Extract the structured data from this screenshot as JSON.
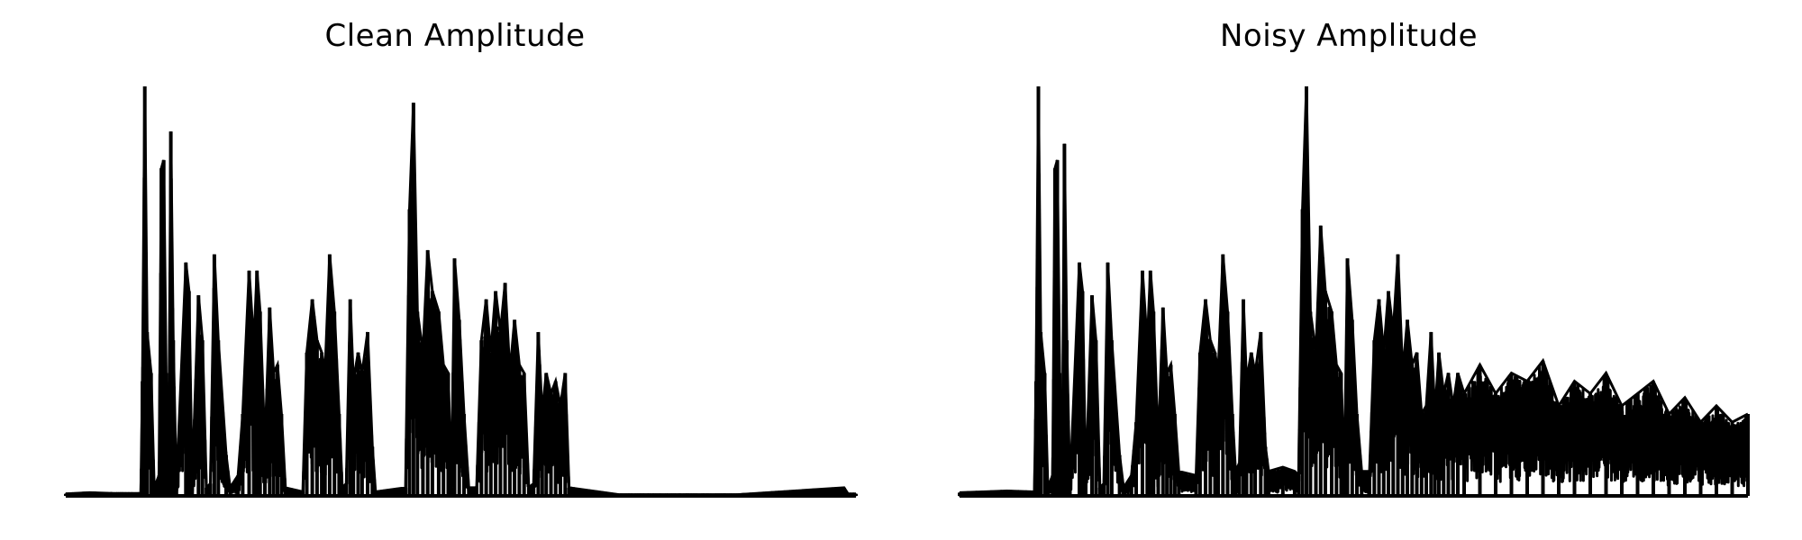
{
  "chart_data": [
    {
      "type": "line",
      "title": "Clean Amplitude",
      "xlabel": "",
      "ylabel": "",
      "axes_visible": false,
      "grid": false,
      "color": "#000000",
      "ylim": [
        0,
        1
      ],
      "segments": [
        {
          "x": [
            0.098,
            0.1
          ],
          "y": [
            0.0,
            1.0
          ]
        }
      ],
      "envelope": [
        [
          0.0,
          0.005
        ],
        [
          0.03,
          0.008
        ],
        [
          0.06,
          0.006
        ],
        [
          0.095,
          0.006
        ],
        [
          0.097,
          0.28
        ],
        [
          0.1,
          1.0
        ],
        [
          0.103,
          0.4
        ],
        [
          0.108,
          0.3
        ],
        [
          0.112,
          0.02
        ],
        [
          0.118,
          0.05
        ],
        [
          0.121,
          0.8
        ],
        [
          0.124,
          0.82
        ],
        [
          0.127,
          0.3
        ],
        [
          0.13,
          0.03
        ],
        [
          0.133,
          0.89
        ],
        [
          0.136,
          0.38
        ],
        [
          0.14,
          0.02
        ],
        [
          0.152,
          0.57
        ],
        [
          0.156,
          0.5
        ],
        [
          0.16,
          0.03
        ],
        [
          0.168,
          0.49
        ],
        [
          0.173,
          0.38
        ],
        [
          0.178,
          0.02
        ],
        [
          0.183,
          0.03
        ],
        [
          0.188,
          0.59
        ],
        [
          0.193,
          0.38
        ],
        [
          0.203,
          0.1
        ],
        [
          0.208,
          0.02
        ],
        [
          0.218,
          0.05
        ],
        [
          0.224,
          0.2
        ],
        [
          0.232,
          0.55
        ],
        [
          0.238,
          0.37
        ],
        [
          0.242,
          0.55
        ],
        [
          0.246,
          0.45
        ],
        [
          0.252,
          0.12
        ],
        [
          0.258,
          0.46
        ],
        [
          0.263,
          0.3
        ],
        [
          0.268,
          0.32
        ],
        [
          0.273,
          0.2
        ],
        [
          0.278,
          0.02
        ],
        [
          0.3,
          0.01
        ],
        [
          0.305,
          0.35
        ],
        [
          0.312,
          0.48
        ],
        [
          0.318,
          0.38
        ],
        [
          0.324,
          0.35
        ],
        [
          0.328,
          0.3
        ],
        [
          0.334,
          0.59
        ],
        [
          0.34,
          0.45
        ],
        [
          0.346,
          0.2
        ],
        [
          0.35,
          0.02
        ],
        [
          0.355,
          0.03
        ],
        [
          0.36,
          0.48
        ],
        [
          0.364,
          0.28
        ],
        [
          0.37,
          0.35
        ],
        [
          0.375,
          0.3
        ],
        [
          0.382,
          0.4
        ],
        [
          0.388,
          0.12
        ],
        [
          0.392,
          0.01
        ],
        [
          0.43,
          0.02
        ],
        [
          0.435,
          0.7
        ],
        [
          0.44,
          0.96
        ],
        [
          0.445,
          0.45
        ],
        [
          0.452,
          0.35
        ],
        [
          0.458,
          0.6
        ],
        [
          0.464,
          0.5
        ],
        [
          0.472,
          0.45
        ],
        [
          0.478,
          0.32
        ],
        [
          0.484,
          0.3
        ],
        [
          0.488,
          0.02
        ],
        [
          0.492,
          0.58
        ],
        [
          0.498,
          0.43
        ],
        [
          0.504,
          0.2
        ],
        [
          0.51,
          0.02
        ],
        [
          0.52,
          0.02
        ],
        [
          0.526,
          0.38
        ],
        [
          0.532,
          0.48
        ],
        [
          0.538,
          0.35
        ],
        [
          0.544,
          0.5
        ],
        [
          0.55,
          0.4
        ],
        [
          0.556,
          0.52
        ],
        [
          0.562,
          0.3
        ],
        [
          0.568,
          0.43
        ],
        [
          0.574,
          0.32
        ],
        [
          0.58,
          0.3
        ],
        [
          0.586,
          0.02
        ],
        [
          0.592,
          0.03
        ],
        [
          0.598,
          0.4
        ],
        [
          0.603,
          0.2
        ],
        [
          0.608,
          0.3
        ],
        [
          0.614,
          0.25
        ],
        [
          0.62,
          0.28
        ],
        [
          0.626,
          0.22
        ],
        [
          0.632,
          0.3
        ],
        [
          0.637,
          0.02
        ],
        [
          0.7,
          0.003
        ],
        [
          0.85,
          0.003
        ],
        [
          0.985,
          0.02
        ],
        [
          0.99,
          0.005
        ],
        [
          1.0,
          0.005
        ]
      ]
    },
    {
      "type": "line",
      "title": "Noisy Amplitude",
      "xlabel": "",
      "ylabel": "",
      "axes_visible": false,
      "grid": false,
      "color": "#000000",
      "ylim": [
        0,
        1
      ],
      "envelope": [
        [
          0.0,
          0.008
        ],
        [
          0.03,
          0.01
        ],
        [
          0.06,
          0.012
        ],
        [
          0.095,
          0.01
        ],
        [
          0.097,
          0.28
        ],
        [
          0.1,
          1.0
        ],
        [
          0.103,
          0.4
        ],
        [
          0.108,
          0.3
        ],
        [
          0.112,
          0.02
        ],
        [
          0.118,
          0.05
        ],
        [
          0.121,
          0.8
        ],
        [
          0.124,
          0.82
        ],
        [
          0.127,
          0.3
        ],
        [
          0.13,
          0.03
        ],
        [
          0.133,
          0.86
        ],
        [
          0.136,
          0.38
        ],
        [
          0.14,
          0.02
        ],
        [
          0.152,
          0.57
        ],
        [
          0.156,
          0.5
        ],
        [
          0.16,
          0.03
        ],
        [
          0.168,
          0.49
        ],
        [
          0.173,
          0.38
        ],
        [
          0.178,
          0.02
        ],
        [
          0.183,
          0.03
        ],
        [
          0.188,
          0.57
        ],
        [
          0.193,
          0.38
        ],
        [
          0.203,
          0.1
        ],
        [
          0.208,
          0.02
        ],
        [
          0.218,
          0.05
        ],
        [
          0.224,
          0.18
        ],
        [
          0.232,
          0.55
        ],
        [
          0.238,
          0.37
        ],
        [
          0.242,
          0.55
        ],
        [
          0.246,
          0.45
        ],
        [
          0.252,
          0.12
        ],
        [
          0.258,
          0.46
        ],
        [
          0.263,
          0.3
        ],
        [
          0.268,
          0.32
        ],
        [
          0.273,
          0.2
        ],
        [
          0.278,
          0.06
        ],
        [
          0.3,
          0.05
        ],
        [
          0.305,
          0.35
        ],
        [
          0.312,
          0.48
        ],
        [
          0.318,
          0.38
        ],
        [
          0.324,
          0.35
        ],
        [
          0.328,
          0.3
        ],
        [
          0.334,
          0.59
        ],
        [
          0.34,
          0.45
        ],
        [
          0.346,
          0.2
        ],
        [
          0.35,
          0.06
        ],
        [
          0.355,
          0.08
        ],
        [
          0.36,
          0.48
        ],
        [
          0.364,
          0.28
        ],
        [
          0.37,
          0.35
        ],
        [
          0.375,
          0.3
        ],
        [
          0.382,
          0.4
        ],
        [
          0.388,
          0.12
        ],
        [
          0.392,
          0.06
        ],
        [
          0.41,
          0.07
        ],
        [
          0.425,
          0.06
        ],
        [
          0.43,
          0.05
        ],
        [
          0.435,
          0.7
        ],
        [
          0.44,
          1.0
        ],
        [
          0.445,
          0.45
        ],
        [
          0.452,
          0.35
        ],
        [
          0.458,
          0.66
        ],
        [
          0.464,
          0.5
        ],
        [
          0.472,
          0.45
        ],
        [
          0.478,
          0.32
        ],
        [
          0.484,
          0.3
        ],
        [
          0.488,
          0.04
        ],
        [
          0.492,
          0.58
        ],
        [
          0.498,
          0.43
        ],
        [
          0.504,
          0.2
        ],
        [
          0.51,
          0.06
        ],
        [
          0.52,
          0.06
        ],
        [
          0.526,
          0.38
        ],
        [
          0.532,
          0.48
        ],
        [
          0.538,
          0.35
        ],
        [
          0.544,
          0.5
        ],
        [
          0.55,
          0.4
        ],
        [
          0.556,
          0.59
        ],
        [
          0.562,
          0.3
        ],
        [
          0.568,
          0.43
        ],
        [
          0.574,
          0.32
        ],
        [
          0.58,
          0.35
        ],
        [
          0.586,
          0.2
        ],
        [
          0.592,
          0.22
        ],
        [
          0.598,
          0.4
        ],
        [
          0.603,
          0.2
        ],
        [
          0.608,
          0.35
        ],
        [
          0.614,
          0.25
        ],
        [
          0.62,
          0.3
        ],
        [
          0.626,
          0.22
        ],
        [
          0.632,
          0.3
        ],
        [
          0.64,
          0.25
        ],
        [
          0.66,
          0.32
        ],
        [
          0.68,
          0.25
        ],
        [
          0.7,
          0.3
        ],
        [
          0.72,
          0.28
        ],
        [
          0.74,
          0.33
        ],
        [
          0.76,
          0.22
        ],
        [
          0.78,
          0.28
        ],
        [
          0.8,
          0.25
        ],
        [
          0.82,
          0.3
        ],
        [
          0.84,
          0.22
        ],
        [
          0.86,
          0.25
        ],
        [
          0.88,
          0.28
        ],
        [
          0.9,
          0.2
        ],
        [
          0.92,
          0.24
        ],
        [
          0.94,
          0.18
        ],
        [
          0.96,
          0.22
        ],
        [
          0.98,
          0.18
        ],
        [
          1.0,
          0.2
        ]
      ]
    }
  ]
}
